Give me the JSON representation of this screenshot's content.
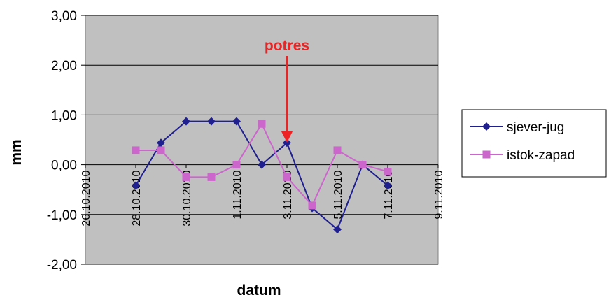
{
  "chart_data": {
    "type": "line",
    "xlabel": "datum",
    "ylabel": "mm",
    "ylim": [
      -2,
      3
    ],
    "yticks": [
      3,
      2,
      1,
      0,
      -1,
      -2
    ],
    "ytick_labels": [
      "3,00",
      "2,00",
      "1,00",
      "0,00",
      "-1,00",
      "-2,00"
    ],
    "xlim": [
      "2010-10-26",
      "2010-11-09"
    ],
    "xtick_dates": [
      "2010-10-26",
      "2010-10-28",
      "2010-10-30",
      "2010-11-01",
      "2010-11-03",
      "2010-11-05",
      "2010-11-07",
      "2010-11-09"
    ],
    "xtick_labels": [
      "26.10.2010",
      "28.10.2010",
      "30.10.2010",
      "1.11.2010",
      "3.11.2010",
      "5.11.2010",
      "7.11.2010",
      "9.11.2010"
    ],
    "grid": "horizontal",
    "plot_background": "#c0c0c0",
    "legend_position": "right",
    "series": [
      {
        "name": "sjever-jug",
        "color": "#1f1f8f",
        "marker": "diamond",
        "x": [
          "2010-10-28",
          "2010-10-29",
          "2010-10-30",
          "2010-10-31",
          "2010-11-01",
          "2010-11-02",
          "2010-11-03",
          "2010-11-04",
          "2010-11-05",
          "2010-11-06",
          "2010-11-07"
        ],
        "y": [
          -0.42,
          0.44,
          0.87,
          0.87,
          0.87,
          0.0,
          0.44,
          -0.87,
          -1.3,
          0.0,
          -0.42
        ]
      },
      {
        "name": "istok-zapad",
        "color": "#cc66cc",
        "marker": "square",
        "x": [
          "2010-10-28",
          "2010-10-29",
          "2010-10-30",
          "2010-10-31",
          "2010-11-01",
          "2010-11-02",
          "2010-11-03",
          "2010-11-04",
          "2010-11-05",
          "2010-11-06",
          "2010-11-07"
        ],
        "y": [
          0.29,
          0.29,
          -0.25,
          -0.25,
          0.0,
          0.82,
          -0.25,
          -0.82,
          0.29,
          0.0,
          -0.14
        ]
      }
    ],
    "annotations": [
      {
        "text": "potres",
        "x": "2010-11-03",
        "pointing_to_y": 0.5,
        "color": "#ee2222"
      }
    ]
  }
}
